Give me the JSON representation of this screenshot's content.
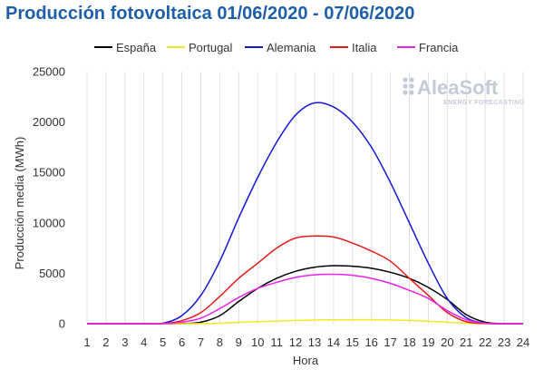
{
  "chart_data": {
    "type": "line",
    "title": "Producción fotovoltaica 01/06/2020 - 07/06/2020",
    "xlabel": "Hora",
    "ylabel": "Producción media (MWh)",
    "x": [
      1,
      2,
      3,
      4,
      5,
      6,
      7,
      8,
      9,
      10,
      11,
      12,
      13,
      14,
      15,
      16,
      17,
      18,
      19,
      20,
      21,
      22,
      23,
      24
    ],
    "ylim": [
      0,
      25000
    ],
    "yticks": [
      0,
      5000,
      10000,
      15000,
      20000,
      25000
    ],
    "grid": "vertical",
    "legend_position": "top",
    "series": [
      {
        "name": "España",
        "color": "#000000",
        "values": [
          0,
          0,
          0,
          0,
          0,
          10,
          150,
          800,
          2200,
          3500,
          4500,
          5200,
          5600,
          5750,
          5700,
          5500,
          5100,
          4500,
          3600,
          2400,
          900,
          150,
          10,
          0
        ]
      },
      {
        "name": "Portugal",
        "color": "#f2ea1c",
        "values": [
          0,
          0,
          0,
          0,
          0,
          0,
          10,
          50,
          130,
          200,
          260,
          320,
          360,
          380,
          390,
          390,
          370,
          320,
          250,
          150,
          50,
          10,
          0,
          0
        ]
      },
      {
        "name": "Alemania",
        "color": "#1717d9",
        "values": [
          0,
          0,
          0,
          0,
          50,
          800,
          2800,
          6200,
          10500,
          14500,
          18000,
          20700,
          21900,
          21500,
          20000,
          17500,
          14000,
          10000,
          6000,
          2500,
          600,
          60,
          0,
          0
        ]
      },
      {
        "name": "Italia",
        "color": "#e81919",
        "values": [
          0,
          0,
          0,
          0,
          20,
          300,
          1100,
          2700,
          4500,
          6000,
          7500,
          8500,
          8700,
          8600,
          8000,
          7200,
          6200,
          4500,
          2800,
          1100,
          200,
          20,
          0,
          0
        ]
      },
      {
        "name": "Francia",
        "color": "#ee22ee",
        "values": [
          0,
          0,
          0,
          0,
          10,
          150,
          550,
          1500,
          2600,
          3500,
          4100,
          4600,
          4850,
          4900,
          4800,
          4500,
          4000,
          3300,
          2500,
          1300,
          400,
          50,
          0,
          0
        ]
      }
    ]
  },
  "watermark": {
    "brand": "AleaSoft",
    "tagline": "ENERGY FORECASTING"
  }
}
